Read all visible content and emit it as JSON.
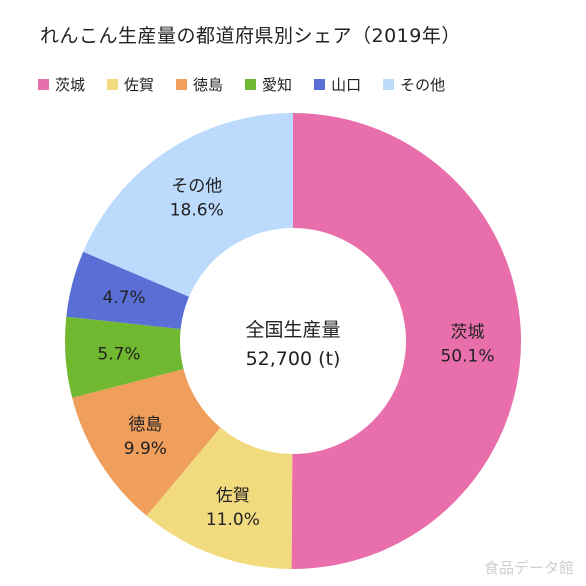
{
  "chart_data": {
    "type": "pie",
    "title": "れんこん生産量の都道府県別シェア（2019年）",
    "center_label": {
      "line1": "全国生産量",
      "line2": "52,700 (t)"
    },
    "legend_placement": "top",
    "slices": [
      {
        "label": "茨城",
        "value": 50.1,
        "display": "50.1%",
        "color": "#e86fab"
      },
      {
        "label": "佐賀",
        "value": 11.0,
        "display": "11.0%",
        "color": "#f2da7f"
      },
      {
        "label": "徳島",
        "value": 9.9,
        "display": "9.9%",
        "color": "#f09e5c"
      },
      {
        "label": "愛知",
        "value": 5.7,
        "display": "5.7%",
        "color": "#70b830"
      },
      {
        "label": "山口",
        "value": 4.7,
        "display": "4.7%",
        "color": "#5a6fd6"
      },
      {
        "label": "その他",
        "value": 18.6,
        "display": "18.6%",
        "color": "#bcdafc"
      }
    ]
  },
  "watermark": "食品データ館"
}
